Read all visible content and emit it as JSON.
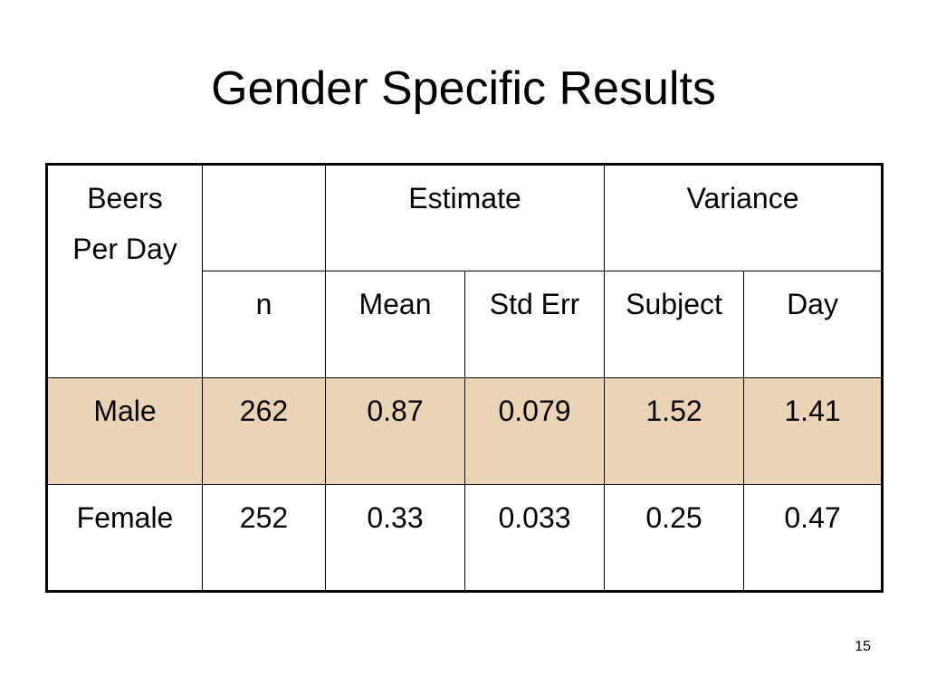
{
  "slide": {
    "title": "Gender Specific Results",
    "page_number": "15"
  },
  "table": {
    "corner_header_lines": [
      "Beers",
      "Per Day"
    ],
    "group_headers": {
      "blank": "",
      "estimate": "Estimate",
      "variance": "Variance"
    },
    "sub_headers": [
      "n",
      "Mean",
      "Std Err",
      "Subject",
      "Day"
    ],
    "rows": [
      {
        "label": "Male",
        "values": [
          "262",
          "0.87",
          "0.079",
          "1.52",
          "1.41"
        ],
        "highlighted": true
      },
      {
        "label": "Female",
        "values": [
          "252",
          "0.33",
          "0.033",
          "0.25",
          "0.47"
        ],
        "highlighted": false
      }
    ]
  },
  "colors": {
    "highlight_row": "#ead3b6",
    "border": "#000000",
    "background": "#ffffff"
  }
}
